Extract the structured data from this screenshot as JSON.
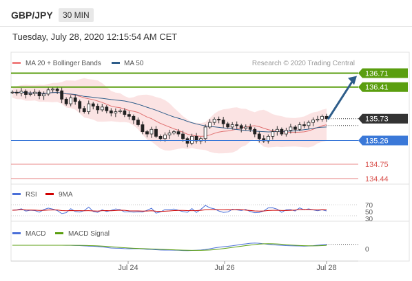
{
  "header": {
    "symbol": "GBP/JPY",
    "timeframe": "30 MIN",
    "datetime": "Tuesday, July 28, 2020 12:15:54 AM CET"
  },
  "main_panel": {
    "legend": [
      {
        "label": "MA 20 + Bollinger Bands",
        "color": "#f08080"
      },
      {
        "label": "MA 50",
        "color": "#2e5d8a"
      }
    ],
    "credit": "Research © 2020 Trading Central"
  },
  "levels": [
    {
      "value": 136.71,
      "label": "136.71",
      "style": "tag",
      "color": "#5a9e0f"
    },
    {
      "value": 136.41,
      "label": "136.41",
      "style": "tag",
      "color": "#5a9e0f"
    },
    {
      "value": 135.73,
      "label": "135.73",
      "style": "tag",
      "color": "#333333"
    },
    {
      "value": 135.26,
      "label": "135.26",
      "style": "tag",
      "color": "#3a78d8"
    },
    {
      "value": 134.75,
      "label": "134.75",
      "style": "text",
      "color": "#d9534f"
    },
    {
      "value": 134.44,
      "label": "134.44",
      "style": "text",
      "color": "#d9534f"
    }
  ],
  "rsi_panel": {
    "legend": [
      {
        "label": "RSI",
        "color": "#4a6fd8"
      },
      {
        "label": "9MA",
        "color": "#d00000"
      }
    ],
    "ticks": [
      "70",
      "50",
      "30"
    ]
  },
  "macd_panel": {
    "legend": [
      {
        "label": "MACD",
        "color": "#4a6fd8"
      },
      {
        "label": "MACD Signal",
        "color": "#5a9e0f"
      }
    ],
    "ticks": [
      "0"
    ]
  },
  "x_ticks": [
    "Jul 24",
    "Jul 26",
    "Jul 28"
  ],
  "chart_data": {
    "type": "candlestick",
    "ylim": [
      134.35,
      136.85
    ],
    "close_series": [
      136.3,
      136.28,
      136.32,
      136.25,
      136.27,
      136.3,
      136.22,
      136.26,
      136.35,
      136.37,
      136.33,
      136.15,
      136.05,
      136.18,
      136.1,
      135.95,
      135.88,
      136.05,
      136.0,
      135.92,
      135.98,
      135.9,
      135.85,
      135.88,
      135.9,
      135.82,
      135.78,
      135.7,
      135.6,
      135.45,
      135.4,
      135.5,
      135.35,
      135.3,
      135.38,
      135.42,
      135.45,
      135.4,
      135.3,
      135.2,
      135.35,
      135.25,
      135.3,
      135.55,
      135.65,
      135.72,
      135.7,
      135.62,
      135.55,
      135.6,
      135.58,
      135.52,
      135.55,
      135.5,
      135.4,
      135.3,
      135.25,
      135.35,
      135.45,
      135.5,
      135.4,
      135.48,
      135.55,
      135.5,
      135.6,
      135.58,
      135.65,
      135.7,
      135.72,
      135.78,
      135.73
    ],
    "forecast_arrow": {
      "from": 135.73,
      "to": 136.71
    }
  }
}
